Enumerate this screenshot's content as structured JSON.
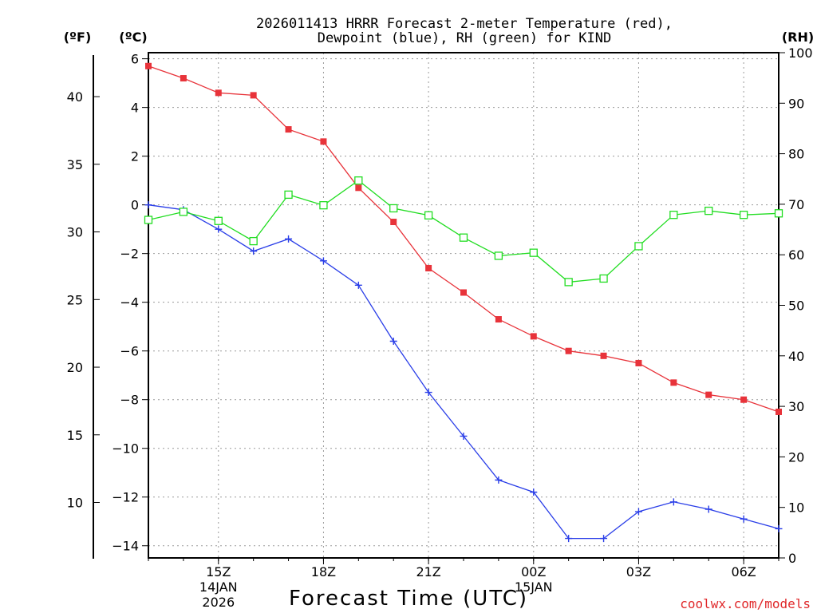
{
  "chart_data": {
    "type": "line",
    "title_line1": "2026011413 HRRR Forecast 2-meter Temperature (red),",
    "title_line2": "Dewpoint (blue), RH (green) for KIND",
    "xlabel": "Forecast Time (UTC)",
    "credit": "coolwx.com/models",
    "units": {
      "fahrenheit": "(ºF)",
      "celsius": "(ºC)",
      "rh": "(RH)"
    },
    "x_range": [
      13,
      31
    ],
    "x_ticks": [
      {
        "hour": 15,
        "label": "15Z",
        "date_label": "14JAN",
        "year_label": "2026"
      },
      {
        "hour": 18,
        "label": "18Z"
      },
      {
        "hour": 21,
        "label": "21Z"
      },
      {
        "hour": 24,
        "label": "00Z",
        "date_label": "15JAN"
      },
      {
        "hour": 27,
        "label": "03Z"
      },
      {
        "hour": 30,
        "label": "06Z"
      }
    ],
    "celsius_range": [
      -14.5,
      6.25
    ],
    "celsius_ticks": [
      6,
      4,
      2,
      0,
      -2,
      -4,
      -6,
      -8,
      -10,
      -12,
      -14
    ],
    "celsius_tick_labels": [
      "6",
      "4",
      "2",
      "0",
      "−2",
      "−4",
      "−6",
      "−8",
      "−10",
      "−12",
      "−14"
    ],
    "fahrenheit_ticks": [
      40,
      35,
      30,
      25,
      20,
      15,
      10
    ],
    "rh_range": [
      0,
      100
    ],
    "rh_ticks": [
      100,
      90,
      80,
      70,
      60,
      50,
      40,
      30,
      20,
      10,
      0
    ],
    "x": [
      13,
      14,
      15,
      16,
      17,
      18,
      19,
      20,
      21,
      22,
      23,
      24,
      25,
      26,
      27,
      28,
      29,
      30,
      31
    ],
    "series": [
      {
        "name": "2-meter Temperature",
        "unit": "C",
        "color": "#e8333a",
        "marker": "filled-square",
        "values": [
          5.7,
          5.2,
          4.6,
          4.5,
          3.1,
          2.6,
          0.7,
          -0.7,
          -2.6,
          -3.6,
          -4.7,
          -5.4,
          -6.0,
          -6.2,
          -6.5,
          -7.3,
          -7.8,
          -8.0,
          -8.5
        ]
      },
      {
        "name": "Dewpoint",
        "unit": "C",
        "color": "#2a3ee8",
        "marker": "plus",
        "values": [
          0.0,
          -0.2,
          -1.0,
          -1.9,
          -1.4,
          -2.3,
          -3.3,
          -5.6,
          -7.7,
          -9.5,
          -11.3,
          -11.8,
          -13.7,
          -13.7,
          -12.6,
          -12.2,
          -12.5,
          -12.9,
          -13.3
        ]
      },
      {
        "name": "RH",
        "unit": "%",
        "color": "#22dd22",
        "marker": "open-square",
        "values": [
          66.9,
          68.5,
          66.7,
          62.7,
          71.9,
          69.8,
          74.7,
          69.2,
          67.8,
          63.4,
          59.8,
          60.4,
          54.6,
          55.3,
          61.7,
          67.9,
          68.7,
          67.9,
          68.2
        ]
      }
    ]
  }
}
